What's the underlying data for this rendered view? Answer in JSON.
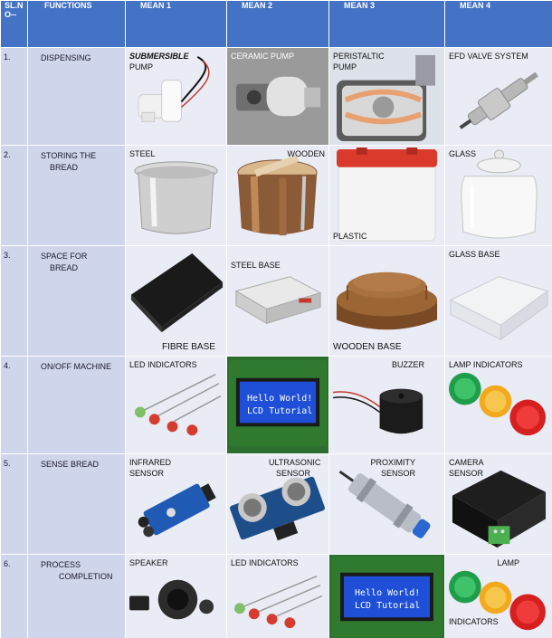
{
  "header": {
    "slno": "SL.N O--",
    "functions": "FUNCTIONS",
    "mean1": "MEAN 1",
    "mean2": "MEAN 2",
    "mean3": "MEAN 3",
    "mean4": "MEAN 4"
  },
  "rows": [
    {
      "sl": "1.",
      "fn1": "DISPENSING",
      "fn2": "",
      "m1a": "SUBMERSIBLE",
      "m1b": "PUMP",
      "m2": "CERAMIC PUMP",
      "m3a": "PERISTALTIC",
      "m3b": "PUMP",
      "m4": "EFD VALVE SYSTEM"
    },
    {
      "sl": "2.",
      "fn1": "STORING THE",
      "fn2": "BREAD",
      "m1": "STEEL",
      "m2": "WOODEN",
      "m3": "PLASTIC",
      "m4": "GLASS"
    },
    {
      "sl": "3.",
      "fn1": "SPACE FOR",
      "fn2": "BREAD",
      "m1": "FIBRE BASE",
      "m2": "STEEL BASE",
      "m3": "WOODEN BASE",
      "m4": "GLASS BASE"
    },
    {
      "sl": "4.",
      "fn1": "ON/OFF MACHINE",
      "fn2": "",
      "m1": "LED INDICATORS",
      "m2": "",
      "m3": "BUZZER",
      "m4": "LAMP INDICATORS",
      "lcd1": "Hello World!",
      "lcd2": "LCD Tutorial"
    },
    {
      "sl": "5.",
      "fn1": "SENSE BREAD",
      "fn2": "",
      "m1a": "INFRARED",
      "m1b": "SENSOR",
      "m2a": "ULTRASONIC",
      "m2b": "SENSOR",
      "m3a": "PROXIMITY",
      "m3b": "SENSOR",
      "m4a": "CAMERA",
      "m4b": "SENSOR"
    },
    {
      "sl": "6.",
      "fn1": "PROCESS",
      "fn2": "COMPLETION",
      "m1": "SPEAKER",
      "m2": "LED INDICATORS",
      "m3": "",
      "m4a": "LAMP",
      "m4b": "INDICATORS",
      "lcd1": "Hello World!",
      "lcd2": "LCD Tutorial"
    }
  ]
}
